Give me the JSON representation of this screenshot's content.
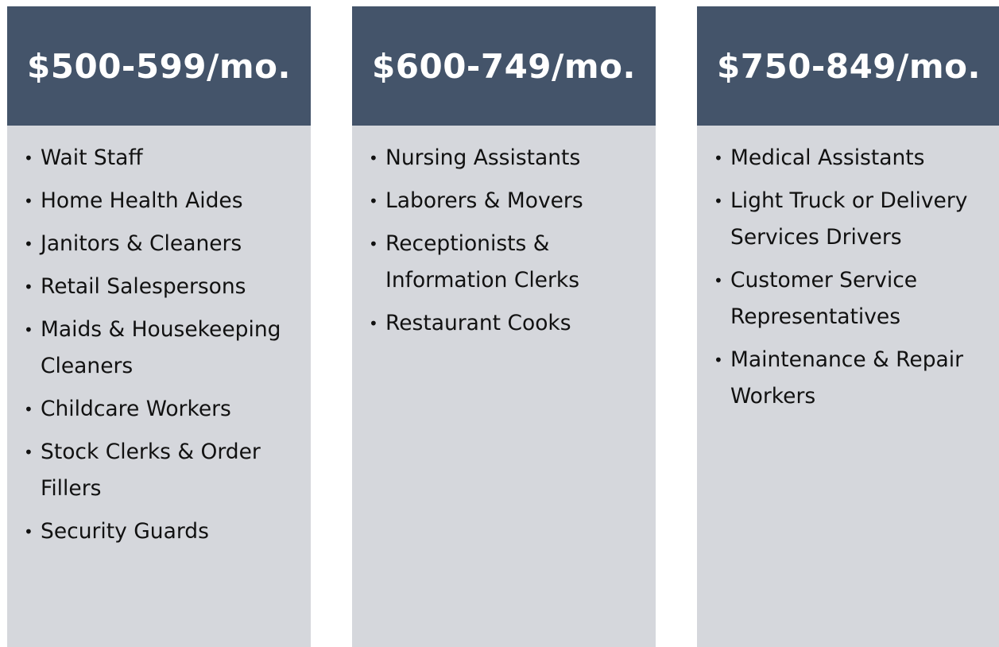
{
  "columns": [
    {
      "title": "$500-599/mo.",
      "items": [
        "Wait Staff",
        "Home Health Aides",
        "Janitors & Cleaners",
        "Retail Salespersons",
        "Maids & Housekeeping Cleaners",
        "Childcare Workers",
        "Stock Clerks & Order Fillers",
        "Security Guards"
      ]
    },
    {
      "title": "$600-749/mo.",
      "items": [
        "Nursing Assistants",
        "Laborers & Movers",
        "Receptionists & Information Clerks",
        "Restaurant Cooks"
      ]
    },
    {
      "title": "$750-849/mo.",
      "items": [
        "Medical Assistants",
        "Light Truck or Delivery Services Drivers",
        "Customer Service Representatives",
        "Maintenance & Repair Workers"
      ]
    }
  ]
}
